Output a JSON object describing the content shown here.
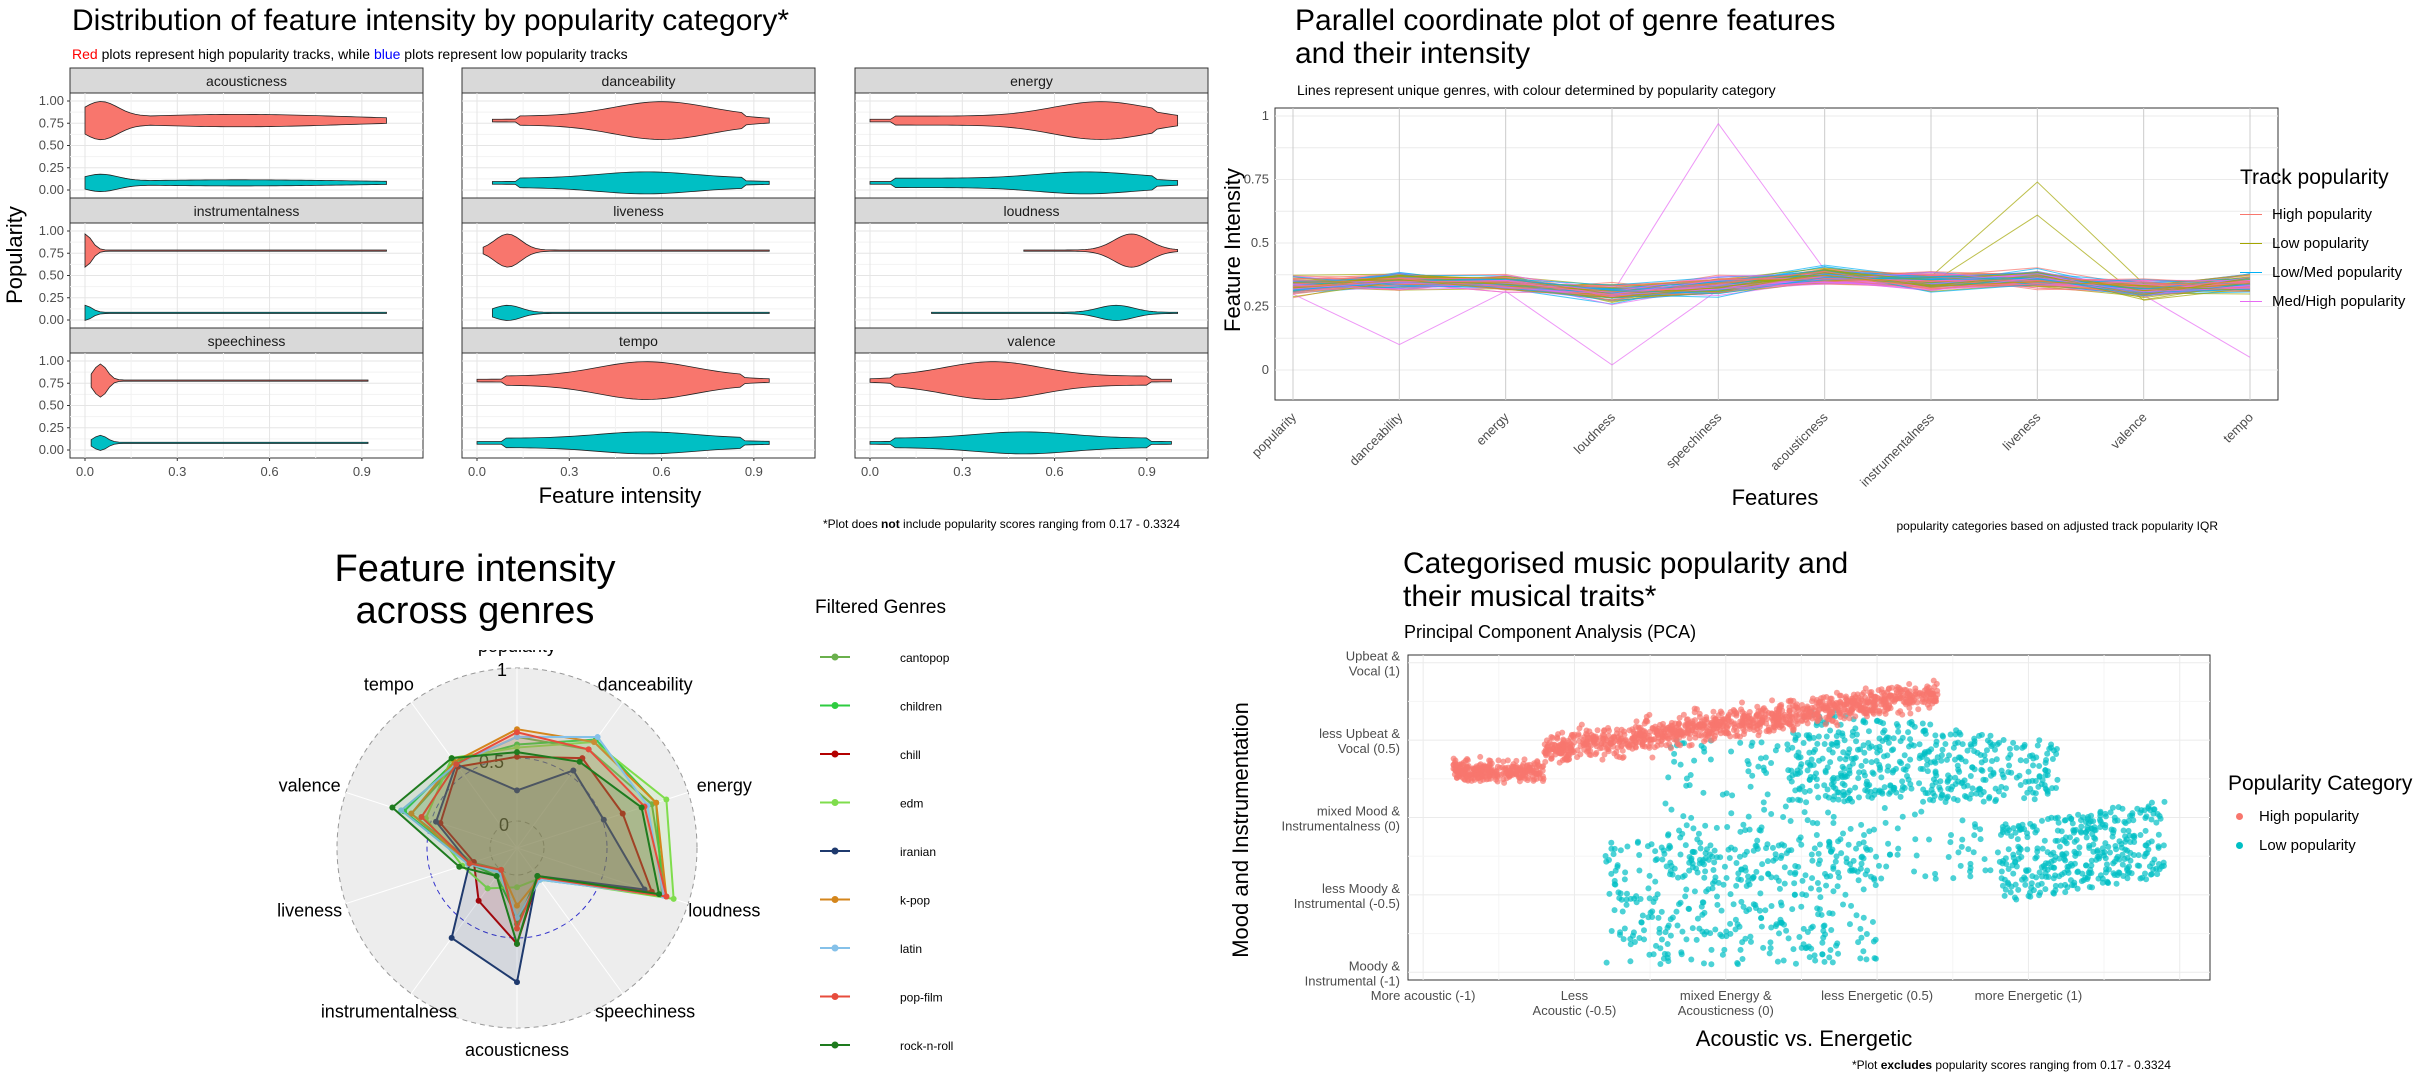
{
  "colors": {
    "high": "#F8766D",
    "low": "#00BFC4",
    "lowmed": "#00B0F6",
    "medhigh": "#E76BF3",
    "lowpop": "#A3A500",
    "red_word": "#FF0000",
    "blue_word": "#0000FF"
  },
  "panel1": {
    "title": "Distribution of feature intensity by popularity category*",
    "subtitle_red": "Red",
    "subtitle_mid": " plots represent high popularity tracks, while ",
    "subtitle_blue": "blue",
    "subtitle_end": " plots represent low popularity tracks",
    "ylabel": "Popularity",
    "xlabel": "Feature intensity",
    "note_pre": "*Plot does ",
    "note_bold": "not",
    "note_post": " include popularity scores ranging from 0.17 - 0.3324",
    "chart_data": {
      "type": "violin",
      "facets": [
        "acousticness",
        "danceability",
        "energy",
        "instrumentalness",
        "liveness",
        "loudness",
        "speechiness",
        "tempo",
        "valence"
      ],
      "y_ticks": [
        "1.00",
        "0.75",
        "0.50",
        "0.25",
        "0.00"
      ],
      "x_ticks": [
        "0.0",
        "0.3",
        "0.6",
        "0.9"
      ],
      "xlim": [
        0,
        1
      ],
      "ylim": [
        0,
        1
      ],
      "series": [
        {
          "category": "high",
          "y": 0.78
        },
        {
          "category": "low",
          "y": 0.08
        }
      ],
      "high_ranges": [
        [
          0.0,
          0.98
        ],
        [
          0.05,
          0.95
        ],
        [
          0.0,
          1.0
        ],
        [
          0.0,
          0.98
        ],
        [
          0.02,
          0.95
        ],
        [
          0.5,
          1.0
        ],
        [
          0.02,
          0.92
        ],
        [
          0.0,
          0.95
        ],
        [
          0.0,
          0.98
        ]
      ],
      "high_peaks": [
        0.05,
        0.6,
        0.75,
        0.0,
        0.1,
        0.85,
        0.05,
        0.55,
        0.4
      ],
      "low_ranges": [
        [
          0.0,
          0.98
        ],
        [
          0.05,
          0.95
        ],
        [
          0.0,
          1.0
        ],
        [
          0.0,
          0.98
        ],
        [
          0.05,
          0.95
        ],
        [
          0.2,
          1.0
        ],
        [
          0.02,
          0.92
        ],
        [
          0.0,
          0.95
        ],
        [
          0.0,
          0.98
        ]
      ],
      "low_peaks": [
        0.05,
        0.55,
        0.7,
        0.0,
        0.1,
        0.8,
        0.05,
        0.55,
        0.5
      ]
    }
  },
  "panel2": {
    "title_line1": "Parallel coordinate plot of genre features",
    "title_line2": "and their intensity",
    "subtitle": "Lines represent unique genres, with colour determined by popularity category",
    "ylabel": "Feature Intensity",
    "xlabel": "Features",
    "legend_title": "Track popularity",
    "note": "popularity categories based on adjusted track popularity IQR",
    "chart_data": {
      "type": "line",
      "categories": [
        "popularity",
        "danceability",
        "energy",
        "loudness",
        "speechiness",
        "acousticness",
        "instrumentalness",
        "liveness",
        "valence",
        "tempo"
      ],
      "y_ticks": [
        "1",
        "0.75",
        "0.5",
        "0.25",
        "0"
      ],
      "ylim": [
        0,
        1
      ],
      "legend": [
        {
          "name": "High popularity",
          "color": "#F8766D"
        },
        {
          "name": "Low popularity",
          "color": "#A3A500"
        },
        {
          "name": "Low/Med popularity",
          "color": "#00B0F6"
        },
        {
          "name": "Med/High popularity",
          "color": "#E76BF3"
        }
      ],
      "series_means": [
        0.33,
        0.35,
        0.34,
        0.3,
        0.33,
        0.37,
        0.35,
        0.36,
        0.32,
        0.34
      ]
    }
  },
  "panel3": {
    "title_line1": "Feature intensity",
    "title_line2": "across genres",
    "legend_title": "Filtered Genres",
    "chart_data": {
      "type": "radar",
      "axes": [
        "popularity",
        "danceability",
        "energy",
        "loudness",
        "speechiness",
        "acousticness",
        "instrumentalness",
        "liveness",
        "valence",
        "tempo"
      ],
      "grid_labels": [
        "1",
        "0.5",
        "0"
      ],
      "series": [
        {
          "name": "cantopop",
          "color": "#6AB04C",
          "values": [
            0.55,
            0.62,
            0.75,
            0.85,
            0.05,
            0.32,
            0.0,
            0.13,
            0.55,
            0.5
          ]
        },
        {
          "name": "children",
          "color": "#2ECC40",
          "values": [
            0.5,
            0.7,
            0.78,
            0.82,
            0.08,
            0.28,
            0.05,
            0.15,
            0.6,
            0.52
          ]
        },
        {
          "name": "chill",
          "color": "#B30000",
          "values": [
            0.42,
            0.55,
            0.55,
            0.75,
            0.06,
            0.45,
            0.25,
            0.12,
            0.35,
            0.48
          ]
        },
        {
          "name": "edm",
          "color": "#7FDD4C",
          "values": [
            0.48,
            0.68,
            0.85,
            0.9,
            0.07,
            0.08,
            0.15,
            0.2,
            0.45,
            0.55
          ]
        },
        {
          "name": "iranian",
          "color": "#1F3A6E",
          "values": [
            0.2,
            0.45,
            0.42,
            0.7,
            0.05,
            0.7,
            0.55,
            0.15,
            0.38,
            0.5
          ]
        },
        {
          "name": "k-pop",
          "color": "#D4861C",
          "values": [
            0.6,
            0.68,
            0.78,
            0.85,
            0.07,
            0.2,
            0.0,
            0.15,
            0.55,
            0.52
          ]
        },
        {
          "name": "latin",
          "color": "#85C1E9",
          "values": [
            0.55,
            0.72,
            0.72,
            0.83,
            0.08,
            0.28,
            0.02,
            0.16,
            0.62,
            0.5
          ]
        },
        {
          "name": "pop-film",
          "color": "#E74C3C",
          "values": [
            0.58,
            0.62,
            0.7,
            0.85,
            0.06,
            0.35,
            0.0,
            0.15,
            0.48,
            0.5
          ]
        },
        {
          "name": "rock-n-roll",
          "color": "#1E7B1E",
          "values": [
            0.45,
            0.52,
            0.68,
            0.8,
            0.05,
            0.45,
            0.05,
            0.22,
            0.68,
            0.55
          ]
        }
      ]
    }
  },
  "panel4": {
    "title_line1": "Categorised music popularity and",
    "title_line2": "their musical traits*",
    "subtitle": "Principal Component Analysis (PCA)",
    "xlabel": "Acoustic vs. Energetic",
    "ylabel": "Mood and Instrumentation",
    "legend_title": "Popularity Category",
    "note_pre": "*Plot ",
    "note_bold": "excludes",
    "note_post": " popularity scores ranging from 0.17 - 0.3324",
    "chart_data": {
      "type": "scatter",
      "xlim": [
        -1.05,
        1.6
      ],
      "ylim": [
        -1.05,
        1.05
      ],
      "x_ticks": [
        {
          "value": -1,
          "line1": "More acoustic (-1)",
          "line2": ""
        },
        {
          "value": -0.5,
          "line1": "Less",
          "line2": "Acoustic (-0.5)"
        },
        {
          "value": 0,
          "line1": "mixed Energy &",
          "line2": "Acousticness (0)"
        },
        {
          "value": 0.5,
          "line1": "less Energetic (0.5)",
          "line2": ""
        },
        {
          "value": 1,
          "line1": "more Energetic (1)",
          "line2": ""
        }
      ],
      "y_ticks": [
        {
          "value": 1,
          "line1": "Upbeat &",
          "line2": "Vocal (1)"
        },
        {
          "value": 0.5,
          "line1": "less Upbeat &",
          "line2": "Vocal (0.5)"
        },
        {
          "value": 0,
          "line1": "mixed Mood &",
          "line2": "Instrumentalness (0)"
        },
        {
          "value": -0.5,
          "line1": "less Moody &",
          "line2": "Instrumental (-0.5)"
        },
        {
          "value": -1,
          "line1": "Moody &",
          "line2": "Instrumental (-1)"
        }
      ],
      "legend": [
        {
          "name": "High popularity",
          "color": "#F8766D"
        },
        {
          "name": "Low popularity",
          "color": "#00BFC4"
        }
      ]
    }
  }
}
